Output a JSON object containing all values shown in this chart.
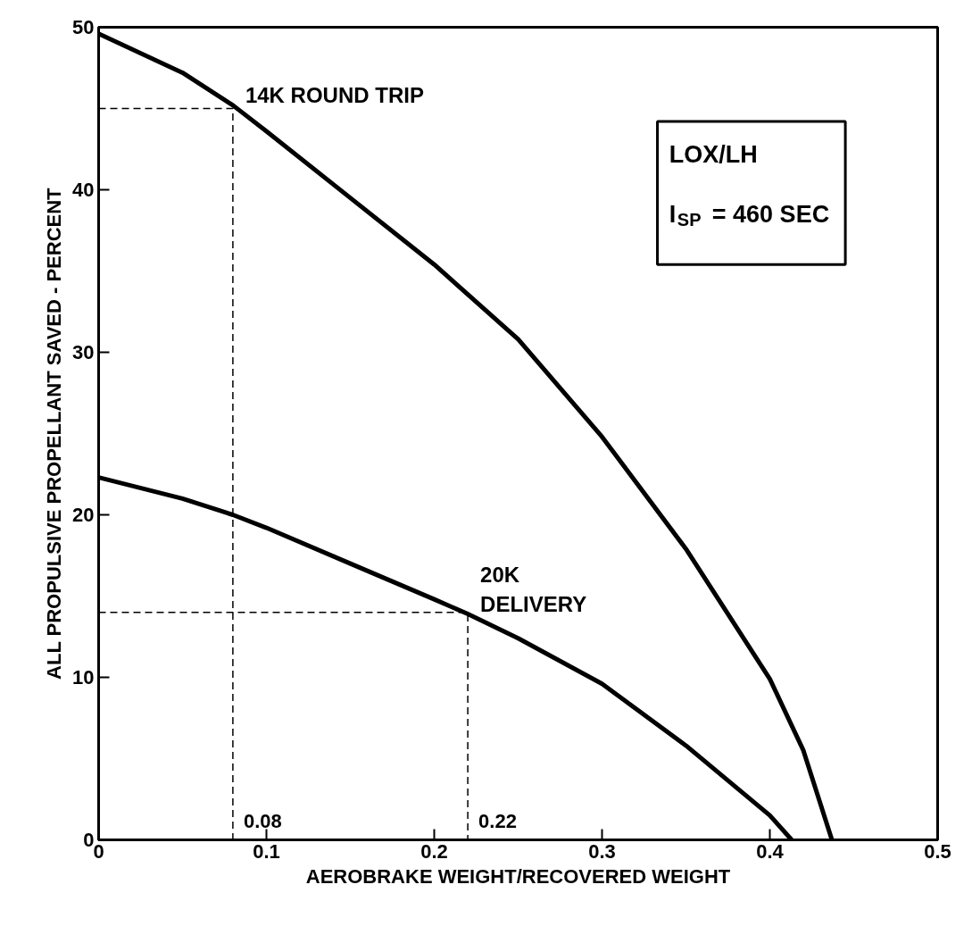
{
  "chart_data": {
    "type": "line",
    "xlabel": "AEROBRAKE WEIGHT/RECOVERED WEIGHT",
    "ylabel": "ALL PROPULSIVE PROPELLANT SAVED - PERCENT",
    "xlim": [
      0,
      0.5
    ],
    "ylim": [
      0,
      50
    ],
    "xticks": [
      0,
      0.1,
      0.2,
      0.3,
      0.4,
      0.5
    ],
    "yticks": [
      0,
      10,
      20,
      30,
      40,
      50
    ],
    "grid": false,
    "marker": "none",
    "series": [
      {
        "name": "14K ROUND TRIP",
        "color": "#000000",
        "line_style": "solid",
        "x": [
          0,
          0.05,
          0.08,
          0.1,
          0.15,
          0.2,
          0.25,
          0.3,
          0.35,
          0.4,
          0.42,
          0.437
        ],
        "values": [
          49.6,
          47.2,
          45.2,
          43.6,
          39.5,
          35.4,
          30.8,
          24.8,
          17.9,
          9.9,
          5.5,
          0
        ]
      },
      {
        "name": "20K\nDELIVERY",
        "color": "#000000",
        "line_style": "solid",
        "x": [
          0,
          0.05,
          0.08,
          0.1,
          0.15,
          0.2,
          0.22,
          0.25,
          0.3,
          0.35,
          0.4,
          0.413
        ],
        "values": [
          22.3,
          21.0,
          20.0,
          19.2,
          17.0,
          14.8,
          13.9,
          12.4,
          9.6,
          5.8,
          1.5,
          0
        ]
      },
      {
        "color": "#000000",
        "line_style": "dashed",
        "x": [
          0,
          0.08,
          0.08
        ],
        "values": [
          45,
          45,
          0
        ]
      },
      {
        "color": "#000000",
        "line_style": "dashed",
        "x": [
          0,
          0.22,
          0.22
        ],
        "values": [
          14,
          14,
          0
        ]
      }
    ],
    "annotations": [
      {
        "text": "0.08",
        "x": 0.08,
        "y": 0
      },
      {
        "text": "0.22",
        "x": 0.22,
        "y": 0
      },
      "LOX/LH",
      "I$_{SP}$ = 460 SEC"
    ]
  }
}
